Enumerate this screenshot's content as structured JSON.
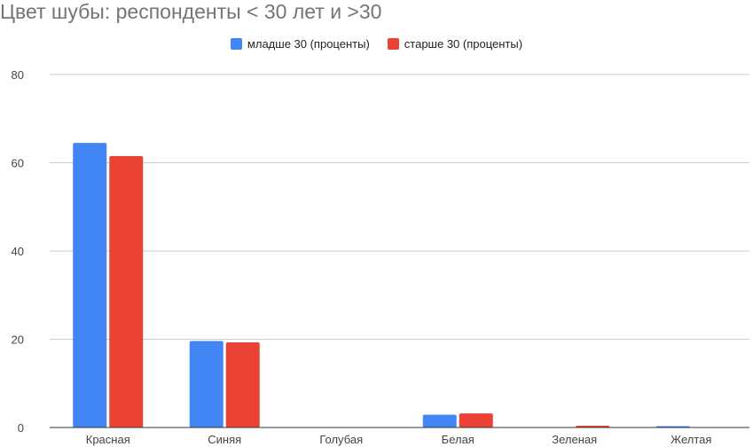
{
  "chart_data": {
    "type": "bar",
    "title": "Цвет шубы: респонденты < 30 лет и >30",
    "categories": [
      "Красная",
      "Синяя",
      "Голубая",
      "Белая",
      "Зеленая",
      "Желтая"
    ],
    "series": [
      {
        "name": "младше 30 (проценты)",
        "color": "#4285f4",
        "values": [
          64.5,
          19.6,
          0,
          2.9,
          0.1,
          0.3
        ]
      },
      {
        "name": "старше 30 (проценты)",
        "color": "#ea4335",
        "values": [
          61.5,
          19.3,
          0,
          3.2,
          0.4,
          0
        ]
      }
    ],
    "ylim": [
      0,
      80
    ],
    "yticks": [
      0,
      20,
      40,
      60,
      80
    ],
    "xlabel": "",
    "ylabel": "",
    "grid": true,
    "legend": "top"
  }
}
